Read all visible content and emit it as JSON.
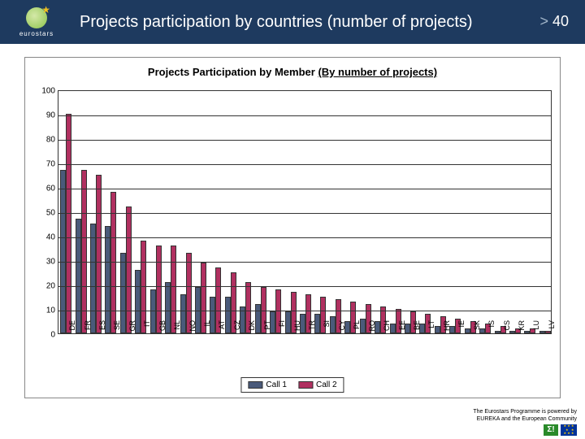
{
  "header": {
    "logo_label": "eurostars",
    "title": "Projects participation by countries (number of projects)",
    "page_prefix": ">",
    "page_num": "40"
  },
  "chart": {
    "type": "bar",
    "title_prefix": "Projects Participation by Member ",
    "title_underlined": "(By number of projects)",
    "ylim_max": 100,
    "ytick_step": 10,
    "yticks": [
      0,
      10,
      20,
      30,
      40,
      50,
      60,
      70,
      80,
      90,
      100
    ],
    "xlabels": [
      "DE",
      "FR",
      "ES",
      "SE",
      "GR",
      "IT",
      "GB",
      "NL",
      "NO",
      "IL",
      "AT",
      "CZ",
      "DK",
      "PT",
      "FI",
      "HU",
      "TR",
      "SI",
      "CY",
      "PL",
      "RO",
      "CH",
      "EE",
      "BE",
      "LT",
      "HR",
      "IE",
      "SK",
      "IS",
      "CS",
      "KR",
      "LU",
      "LV"
    ],
    "series": [
      {
        "name": "Call 1",
        "color": "#4a5a7a",
        "values": [
          67,
          47,
          45,
          44,
          33,
          26,
          18,
          21,
          16,
          19,
          15,
          15,
          11,
          12,
          9,
          9,
          8,
          8,
          7,
          5,
          6,
          5,
          4,
          4,
          4,
          3,
          3,
          2,
          2,
          1,
          1,
          1,
          1
        ]
      },
      {
        "name": "Call 2",
        "color": "#b03060",
        "values": [
          90,
          67,
          65,
          58,
          52,
          38,
          36,
          36,
          33,
          29,
          27,
          25,
          21,
          19,
          18,
          17,
          16,
          15,
          14,
          13,
          12,
          11,
          10,
          9,
          8,
          7,
          6,
          5,
          4,
          3,
          2,
          2,
          1
        ]
      }
    ],
    "bar_pair_gap": 0,
    "background_color": "#ffffff",
    "grid_color": "#333333",
    "border_color": "#333333",
    "label_fontsize": 9,
    "tick_fontsize": 10,
    "title_fontsize": 13
  },
  "footer": {
    "line1": "The Eurostars Programme is powered by",
    "line2": "EUREKA and the European Community"
  }
}
